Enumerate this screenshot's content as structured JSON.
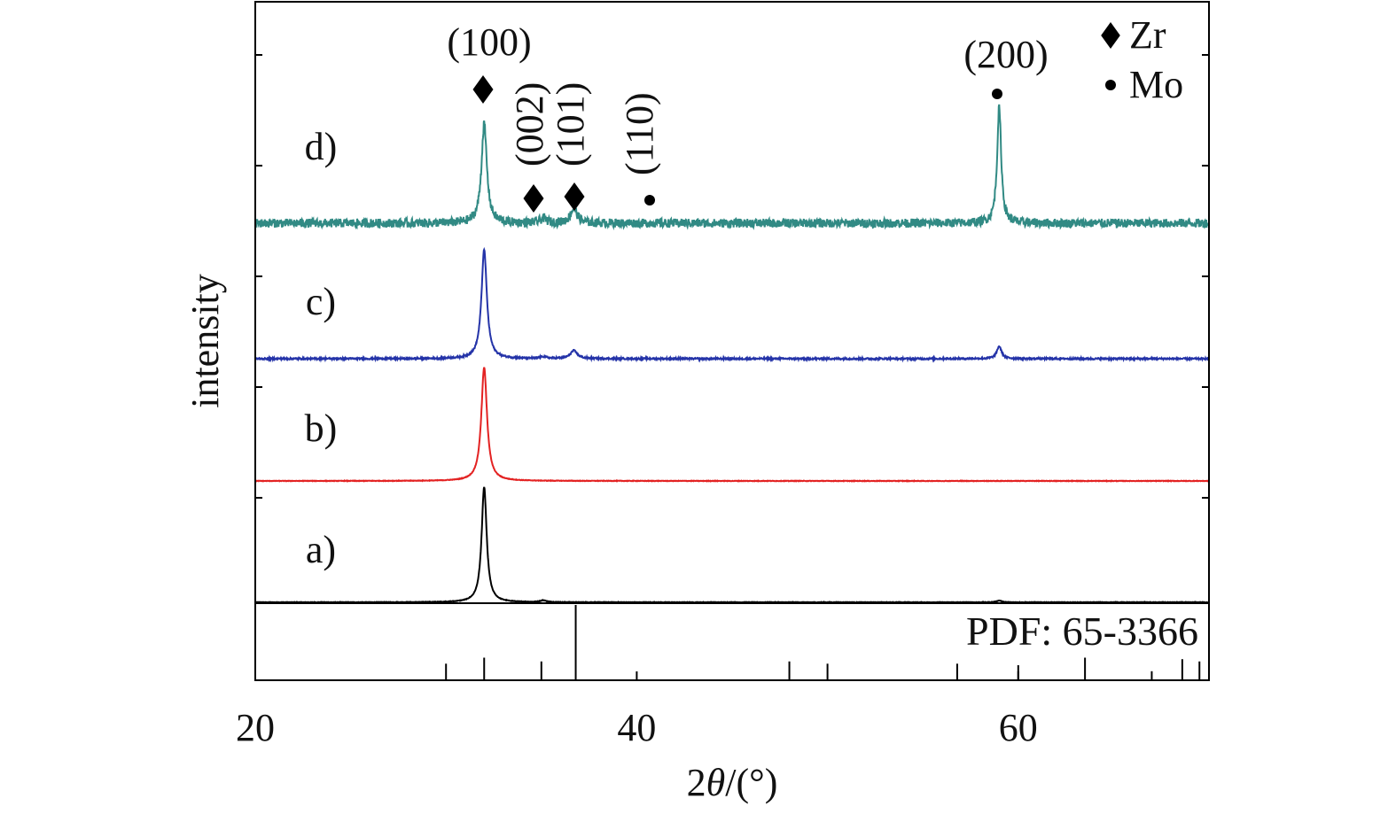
{
  "chart_data": {
    "type": "line",
    "xlabel_prefix": "2",
    "xlabel_theta": "θ",
    "xlabel_suffix": "/(°)",
    "ylabel": "intensity",
    "xlim": [
      20,
      70
    ],
    "xticks": [
      20,
      40,
      60
    ],
    "xtick_labels": [
      "20",
      "40",
      "60"
    ],
    "grid": false,
    "series": [
      {
        "name": "a)",
        "color": "#000000",
        "noise": 0.3,
        "peaks": [
          {
            "x": 32.0,
            "h": 130,
            "w": 0.16
          },
          {
            "x": 35.1,
            "h": 2,
            "w": 0.2
          },
          {
            "x": 59.0,
            "h": 2,
            "w": 0.15
          }
        ]
      },
      {
        "name": "b)",
        "color": "#e32222",
        "noise": 0.3,
        "peaks": [
          {
            "x": 32.0,
            "h": 128,
            "w": 0.18
          }
        ]
      },
      {
        "name": "c)",
        "color": "#2433a8",
        "noise": 0.9,
        "peaks": [
          {
            "x": 32.0,
            "h": 123,
            "w": 0.17
          },
          {
            "x": 35.1,
            "h": 2,
            "w": 0.2
          },
          {
            "x": 36.7,
            "h": 9,
            "w": 0.22
          },
          {
            "x": 59.0,
            "h": 14,
            "w": 0.15
          }
        ]
      },
      {
        "name": "d)",
        "color": "#318a84",
        "noise": 5,
        "peaks": [
          {
            "x": 32.0,
            "h": 112,
            "w": 0.17
          },
          {
            "x": 35.1,
            "h": 5,
            "w": 0.2
          },
          {
            "x": 36.7,
            "h": 16,
            "w": 0.22
          },
          {
            "x": 59.0,
            "h": 130,
            "w": 0.13
          }
        ]
      }
    ],
    "peak_annotations": [
      {
        "label": "(100)",
        "x": 32.0,
        "marker": "diamond",
        "orientation": "horizontal"
      },
      {
        "label": "(002)",
        "x": 34.8,
        "marker": "diamond",
        "orientation": "vertical"
      },
      {
        "label": "(101)",
        "x": 36.9,
        "marker": "diamond",
        "orientation": "vertical"
      },
      {
        "label": "(110)",
        "x": 40.7,
        "marker": "dot",
        "orientation": "vertical"
      },
      {
        "label": "(200)",
        "x": 58.7,
        "marker": "dot",
        "orientation": "horizontal"
      }
    ],
    "legend": {
      "position": "top-right",
      "entries": [
        {
          "marker": "diamond",
          "label": "Zr"
        },
        {
          "marker": "dot",
          "label": "Mo"
        }
      ]
    },
    "reference": {
      "label": "PDF: 65-3366",
      "lines": [
        {
          "x": 30.0,
          "h": 0.22
        },
        {
          "x": 32.0,
          "h": 0.3
        },
        {
          "x": 35.0,
          "h": 0.25
        },
        {
          "x": 36.8,
          "h": 1.0
        },
        {
          "x": 48.0,
          "h": 0.25
        },
        {
          "x": 50.0,
          "h": 0.22
        },
        {
          "x": 56.8,
          "h": 0.22
        },
        {
          "x": 60.0,
          "h": 0.2
        },
        {
          "x": 63.5,
          "h": 0.3
        },
        {
          "x": 67.0,
          "h": 0.12
        },
        {
          "x": 68.6,
          "h": 0.28
        },
        {
          "x": 69.5,
          "h": 0.25
        }
      ]
    }
  }
}
